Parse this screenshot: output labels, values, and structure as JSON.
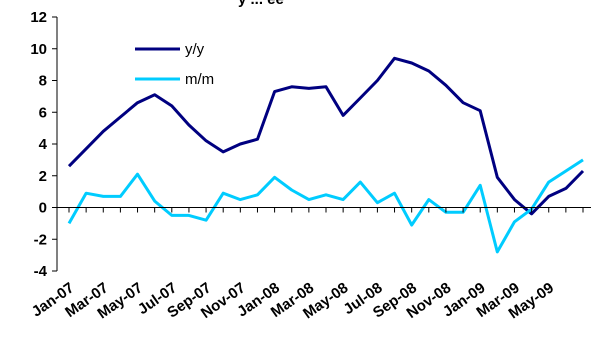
{
  "chart_data": {
    "type": "line",
    "title_fragment": "y ... ee",
    "categories": [
      "Jan-07",
      "Feb-07",
      "Mar-07",
      "Apr-07",
      "May-07",
      "Jun-07",
      "Jul-07",
      "Aug-07",
      "Sep-07",
      "Oct-07",
      "Nov-07",
      "Dec-07",
      "Jan-08",
      "Feb-08",
      "Mar-08",
      "Apr-08",
      "May-08",
      "Jun-08",
      "Jul-08",
      "Aug-08",
      "Sep-08",
      "Oct-08",
      "Nov-08",
      "Dec-08",
      "Jan-09",
      "Feb-09",
      "Mar-09",
      "Apr-09",
      "May-09",
      "Jun-09",
      "Jul-09"
    ],
    "x_tick_labels": [
      "Jan-07",
      "Mar-07",
      "May-07",
      "Jul-07",
      "Sep-07",
      "Nov-07",
      "Jan-08",
      "Mar-08",
      "May-08",
      "Jul-08",
      "Sep-08",
      "Nov-08",
      "Jan-09",
      "Mar-09",
      "May-09"
    ],
    "y_tick_labels": [
      "12",
      "10",
      "8",
      "6",
      "4",
      "2",
      "0",
      "-2",
      "-4"
    ],
    "ylim": [
      -4,
      12
    ],
    "y_step": 2,
    "grid": false,
    "legend_position": "top-left",
    "series": [
      {
        "name": "y/y",
        "color": "#000080",
        "values": [
          2.6,
          3.7,
          4.8,
          5.7,
          6.6,
          7.1,
          6.4,
          5.2,
          4.2,
          3.5,
          4.0,
          4.3,
          7.3,
          7.6,
          7.5,
          7.6,
          5.8,
          6.9,
          8.0,
          9.4,
          9.1,
          8.6,
          7.7,
          6.6,
          6.1,
          1.9,
          0.5,
          -0.4,
          0.7,
          1.2,
          2.3
        ]
      },
      {
        "name": "m/m",
        "color": "#00CCFF",
        "values": [
          -1.0,
          0.9,
          0.7,
          0.7,
          2.1,
          0.4,
          -0.5,
          -0.5,
          -0.8,
          0.9,
          0.5,
          0.8,
          1.9,
          1.1,
          0.5,
          0.8,
          0.5,
          1.6,
          0.3,
          0.9,
          -1.1,
          0.5,
          -0.3,
          -0.3,
          1.4,
          -2.8,
          -0.9,
          -0.1,
          1.6,
          2.3,
          3.0
        ]
      }
    ]
  }
}
